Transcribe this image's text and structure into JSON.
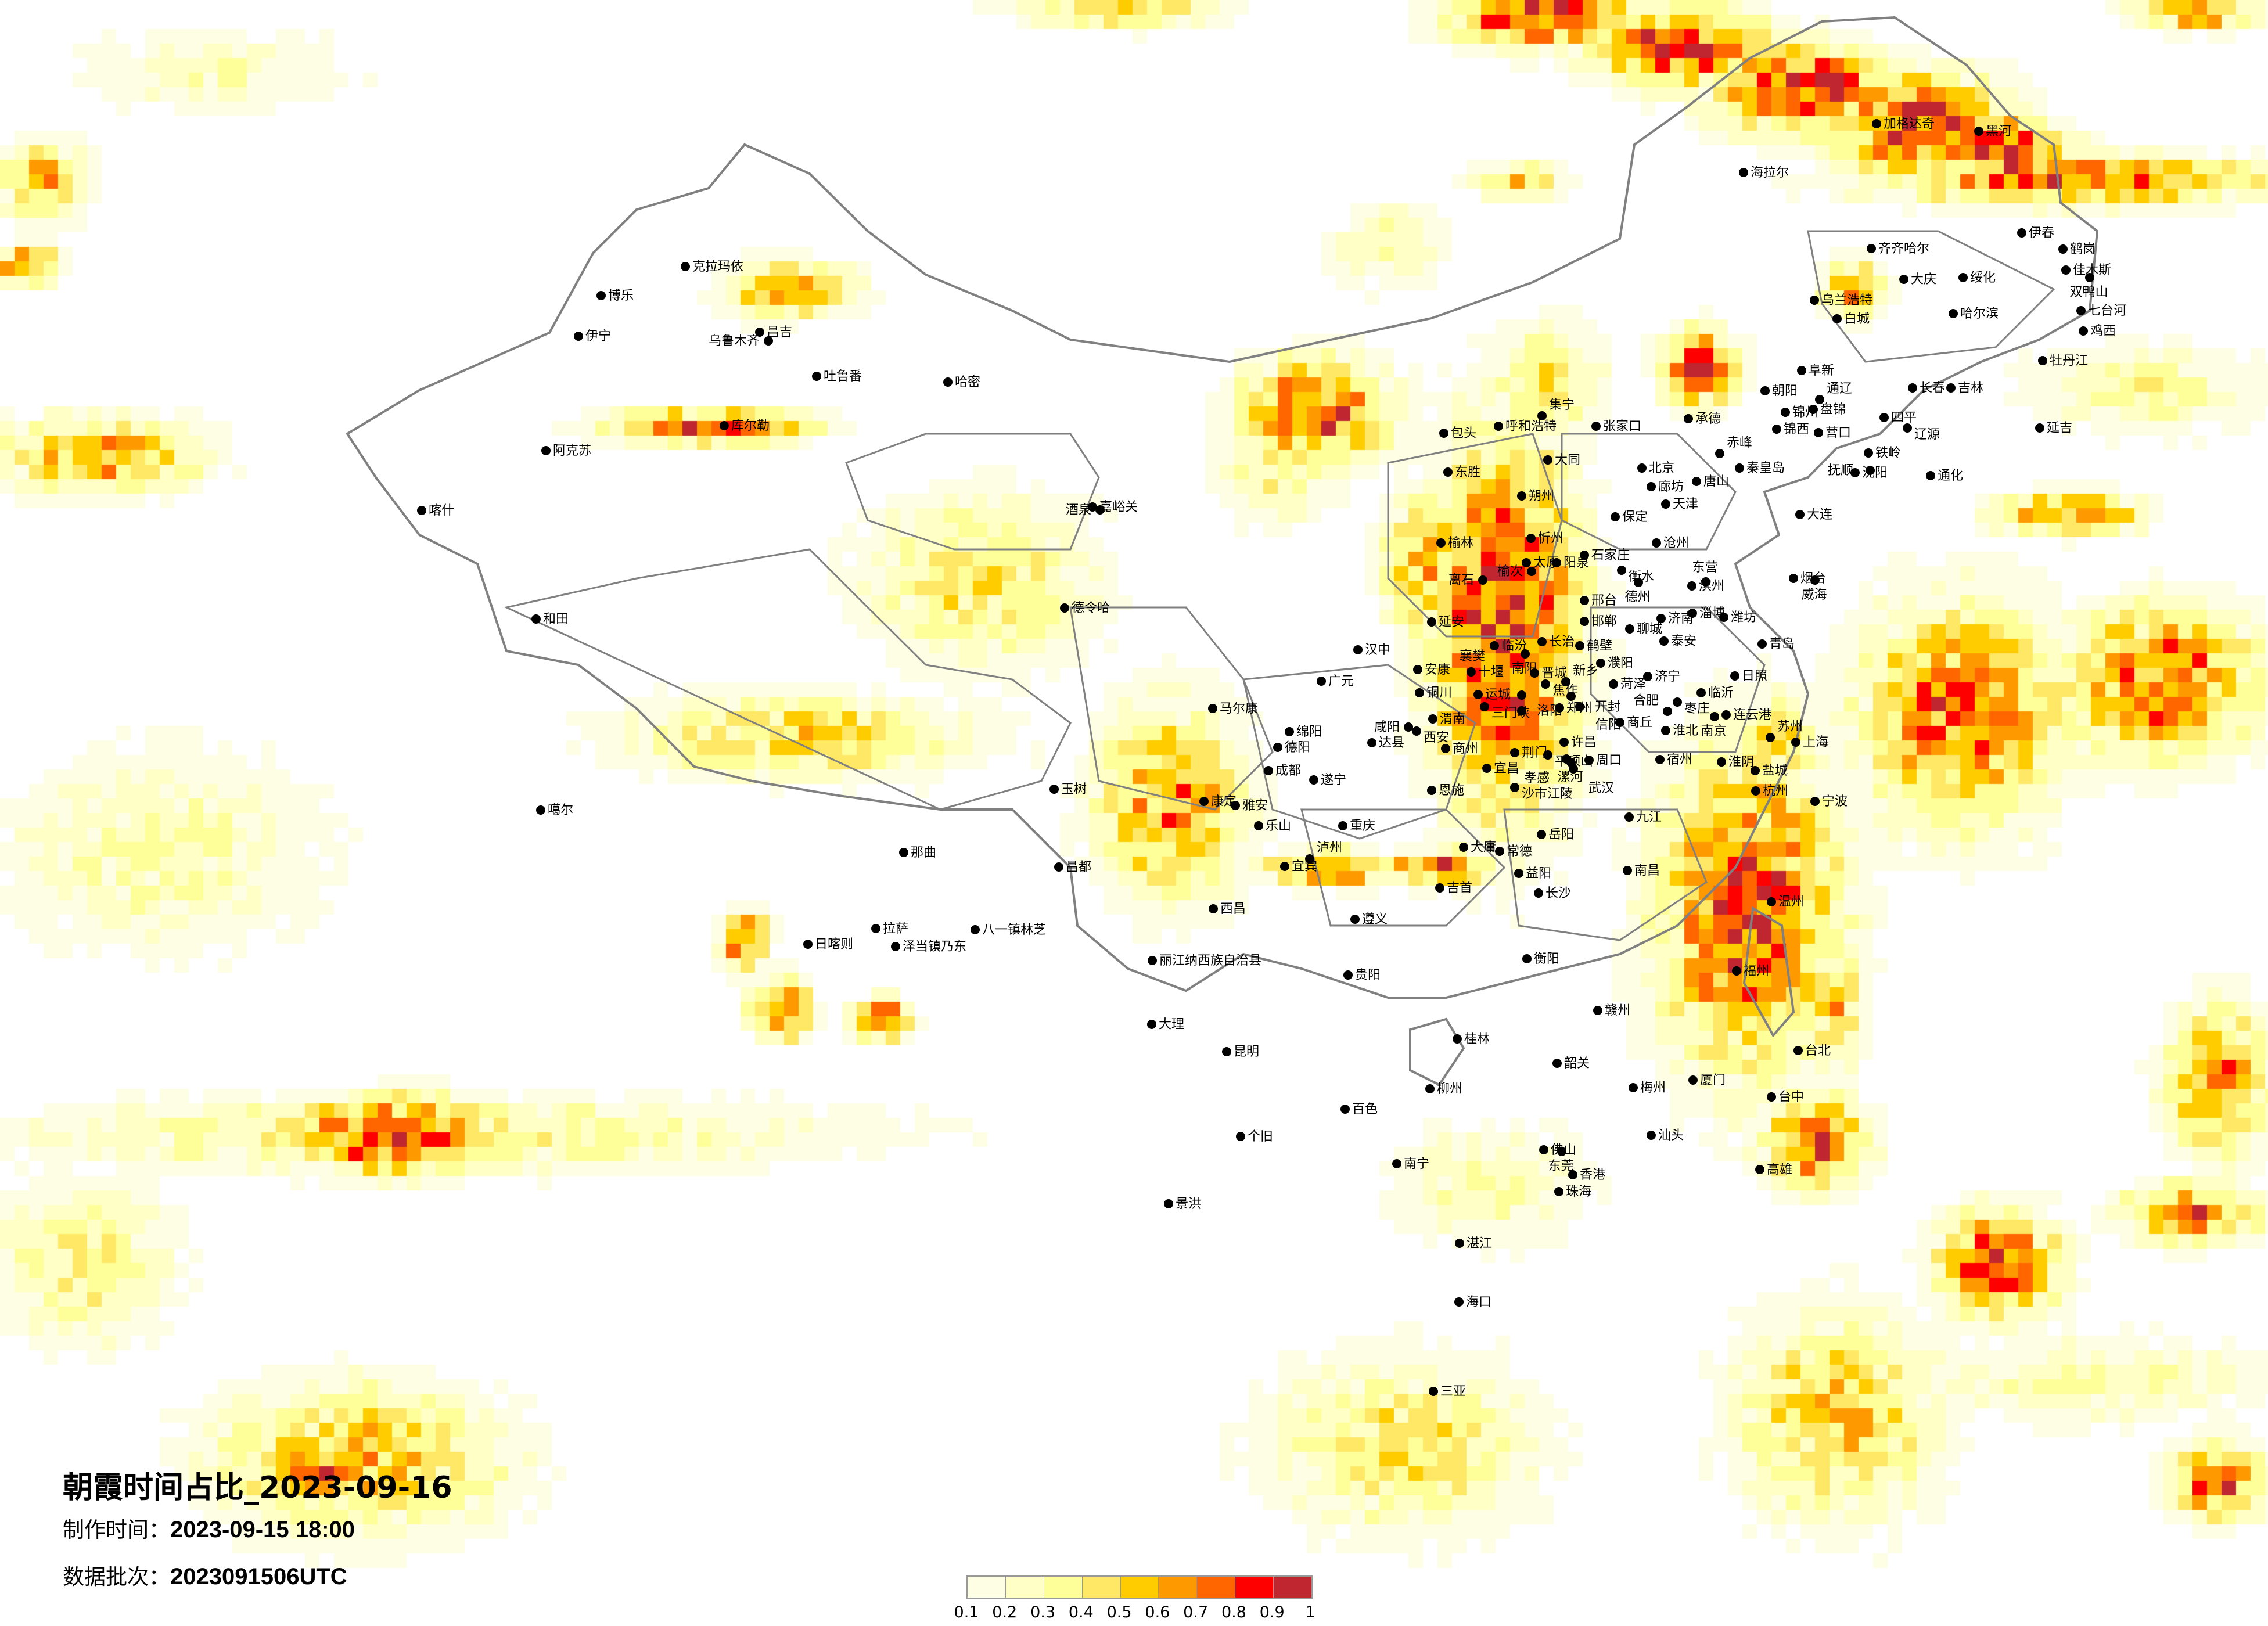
{
  "title": "朝霞时间占比_2023-09-16",
  "made_time_label": "制作时间：",
  "made_time_value": "2023-09-15 18:00",
  "batch_label": "数据批次：",
  "batch_value": "2023091506UTC",
  "legend": {
    "labels": [
      "0.1",
      "0.2",
      "0.3",
      "0.4",
      "0.5",
      "0.6",
      "0.7",
      "0.8",
      "0.9",
      "1"
    ],
    "colors": [
      "#FEFEE4",
      "#FFFFC6",
      "#FFFF99",
      "#FFE866",
      "#FFCC00",
      "#FF9900",
      "#FF6600",
      "#FF0000",
      "#BF2630"
    ]
  },
  "colors": {
    "boundary": "#808080",
    "city_dot": "#000000",
    "background": "#FFFFFF"
  },
  "cities": [
    "包头",
    "呼和浩特",
    "集宁",
    "张家口",
    "东胜",
    "大同",
    "北京",
    "廊坊",
    "天津",
    "唐山",
    "承德",
    "秦皇岛",
    "朔州",
    "保定",
    "忻州",
    "石家庄",
    "阳泉",
    "太原",
    "榆次",
    "榆林",
    "离石",
    "沧州",
    "衡水",
    "德州",
    "滨州",
    "东营",
    "邢台",
    "邯郸",
    "济南",
    "淄博",
    "潍坊",
    "聊城",
    "泰安",
    "延安",
    "临汾",
    "长治",
    "鹤壁",
    "濮阳",
    "晋城",
    "焦作",
    "新乡",
    "菏泽",
    "济宁",
    "青岛",
    "日照",
    "临沂",
    "枣庄",
    "连云港",
    "运城",
    "三门峡",
    "洛阳",
    "郑州",
    "开封",
    "商丘",
    "铜川",
    "渭南",
    "咸阳",
    "西安",
    "商州",
    "许昌",
    "平顶山",
    "漯河",
    "周口",
    "淮北",
    "宿州",
    "淮阴",
    "盐城",
    "阜新",
    "朝阳",
    "锦州",
    "盘锦",
    "锦西",
    "营口",
    "大连",
    "烟台",
    "威海",
    "克拉玛依",
    "博乐",
    "伊宁",
    "昌吉",
    "乌鲁木齐",
    "吐鲁番",
    "哈密",
    "库尔勒",
    "阿克苏",
    "喀什",
    "和田",
    "嘉峪关",
    "酒泉",
    "德令哈",
    "玉树",
    "噶尔",
    "那曲",
    "昌都",
    "日喀则",
    "拉萨",
    "泽当镇乃东",
    "八一镇林芝",
    "汉中",
    "安康",
    "十堰",
    "南阳",
    "广元",
    "马尔康",
    "绵阳",
    "德阳",
    "成都",
    "达县",
    "遂宁",
    "康定",
    "雅安",
    "乐山",
    "重庆",
    "恩施",
    "宜昌",
    "荆门",
    "襄樊",
    "信阳",
    "孝感",
    "武汉",
    "沙市江陵",
    "宜宾",
    "泸州",
    "大庸",
    "常德",
    "岳阳",
    "吉首",
    "益阳",
    "长沙",
    "南昌",
    "九江",
    "合肥",
    "南京",
    "上海",
    "苏州",
    "杭州",
    "宁波",
    "温州",
    "遵义",
    "西昌",
    "贵阳",
    "昆明",
    "大理",
    "丽江纳西族自治县",
    "桂林",
    "衡阳",
    "赣州",
    "福州",
    "厦门",
    "台北",
    "台中",
    "高雄",
    "南宁",
    "佛山",
    "东莞",
    "香港",
    "珠海",
    "海口",
    "三亚",
    "汕头",
    "梅州",
    "韶关",
    "柳州",
    "湛江",
    "景洪",
    "个旧",
    "百色",
    "加格达奇",
    "黑河",
    "海拉尔",
    "齐齐哈尔",
    "伊春",
    "鹤岗",
    "佳木斯",
    "双鸭山",
    "大庆",
    "绥化",
    "乌兰浩特",
    "白城",
    "哈尔滨",
    "七台河",
    "鸡西",
    "牡丹江",
    "长春",
    "吉林",
    "通辽",
    "四平",
    "辽源",
    "延吉",
    "赤峰",
    "铁岭",
    "沈阳",
    "抚顺",
    "通化"
  ]
}
